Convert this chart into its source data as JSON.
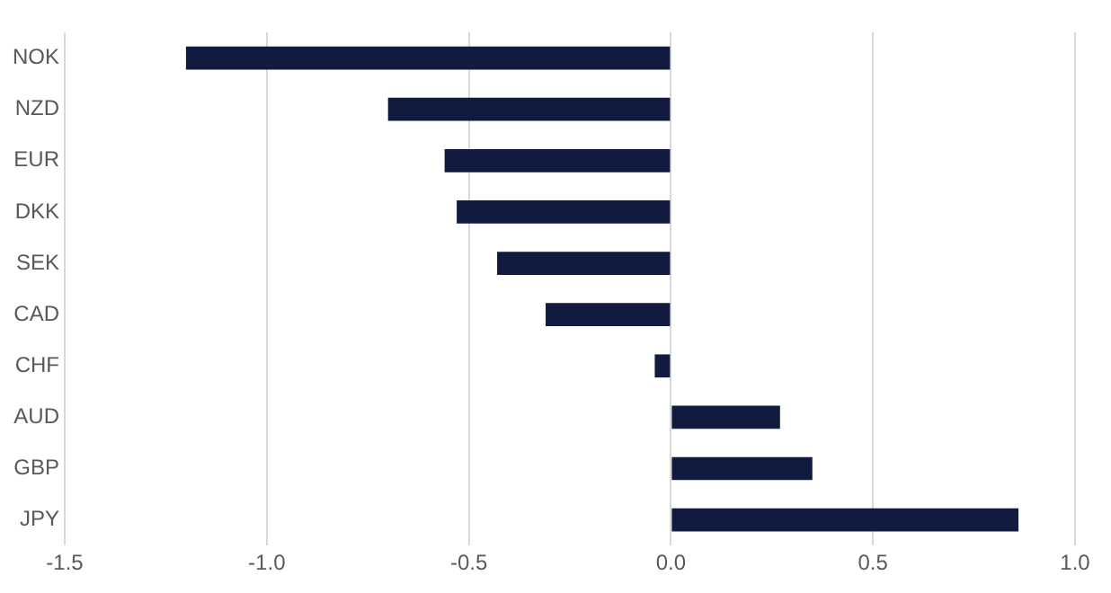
{
  "chart_data": {
    "type": "bar",
    "orientation": "horizontal",
    "categories": [
      "NOK",
      "NZD",
      "EUR",
      "DKK",
      "SEK",
      "CAD",
      "CHF",
      "AUD",
      "GBP",
      "JPY"
    ],
    "values": [
      -1.2,
      -0.7,
      -0.56,
      -0.53,
      -0.43,
      -0.31,
      -0.04,
      0.27,
      0.35,
      0.86
    ],
    "color": "#111a3f",
    "xlim": [
      -1.5,
      1.0
    ],
    "xticks": [
      {
        "value": -1.5,
        "label": "-1.5"
      },
      {
        "value": -1.0,
        "label": "-1.0"
      },
      {
        "value": -0.5,
        "label": "-0.5"
      },
      {
        "value": 0,
        "label": "0.0"
      },
      {
        "value": 0.5,
        "label": "0.5"
      },
      {
        "value": 1.0,
        "label": "1.0"
      }
    ],
    "grid": "x"
  }
}
